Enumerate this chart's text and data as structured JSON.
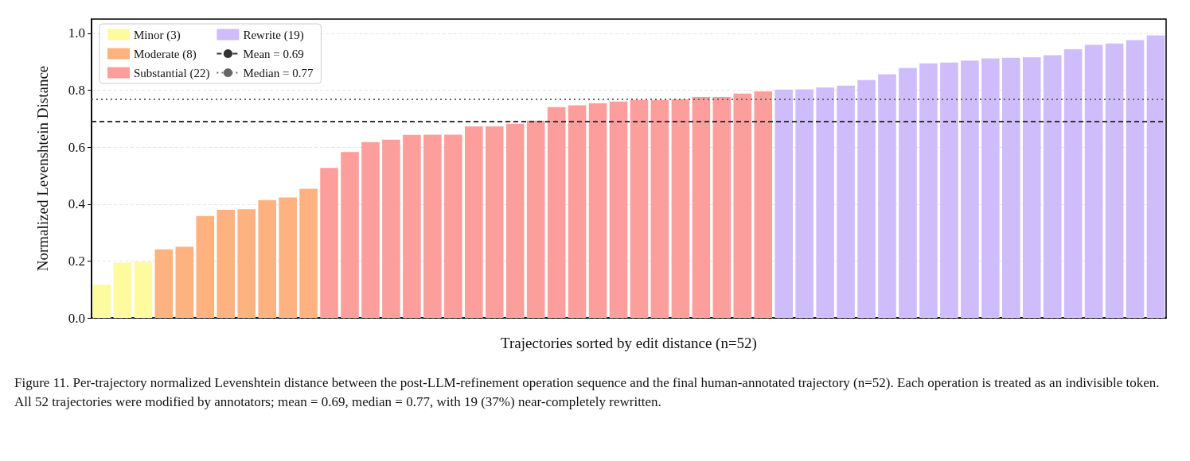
{
  "chart_data": {
    "type": "bar",
    "xlabel": "Trajectories sorted by edit distance (n=52)",
    "ylabel": "Normalized Levenshtein Distance",
    "categories": [
      null,
      null,
      null,
      null,
      null,
      null,
      null,
      null,
      null,
      null,
      null,
      null,
      null,
      null,
      null,
      null,
      null,
      null,
      null,
      null,
      null,
      null,
      null,
      null,
      null,
      null,
      null,
      null,
      null,
      null,
      null,
      null,
      null,
      null,
      null,
      null,
      null,
      null,
      null,
      null,
      null,
      null,
      null,
      null,
      null,
      null,
      null,
      null,
      null,
      null,
      null,
      null
    ],
    "series": [
      {
        "name": "Minor (3)",
        "color": "#fefb9f",
        "values": [
          0.117,
          0.194,
          0.197,
          null,
          null,
          null,
          null,
          null,
          null,
          null,
          null,
          null,
          null,
          null,
          null,
          null,
          null,
          null,
          null,
          null,
          null,
          null,
          null,
          null,
          null,
          null,
          null,
          null,
          null,
          null,
          null,
          null,
          null,
          null,
          null,
          null,
          null,
          null,
          null,
          null,
          null,
          null,
          null,
          null,
          null,
          null,
          null,
          null,
          null,
          null,
          null,
          null
        ]
      },
      {
        "name": "Moderate (8)",
        "color": "#fdb27f",
        "values": [
          null,
          null,
          null,
          0.241,
          0.25,
          0.358,
          0.38,
          0.382,
          0.414,
          0.423,
          0.454,
          null,
          null,
          null,
          null,
          null,
          null,
          null,
          null,
          null,
          null,
          null,
          null,
          null,
          null,
          null,
          null,
          null,
          null,
          null,
          null,
          null,
          null,
          null,
          null,
          null,
          null,
          null,
          null,
          null,
          null,
          null,
          null,
          null,
          null,
          null,
          null,
          null,
          null,
          null,
          null,
          null
        ]
      },
      {
        "name": "Substantial (22)",
        "color": "#fc9e9b",
        "values": [
          null,
          null,
          null,
          null,
          null,
          null,
          null,
          null,
          null,
          null,
          null,
          0.527,
          0.583,
          0.618,
          0.626,
          0.643,
          0.644,
          0.644,
          0.673,
          0.673,
          0.682,
          0.693,
          0.741,
          0.747,
          0.754,
          0.76,
          0.766,
          0.766,
          0.768,
          0.776,
          0.776,
          0.788,
          0.796,
          null,
          null,
          null,
          null,
          null,
          null,
          null,
          null,
          null,
          null,
          null,
          null,
          null,
          null,
          null,
          null,
          null,
          null,
          null
        ]
      },
      {
        "name": "Rewrite (19)",
        "color": "#cfbcfb",
        "values": [
          null,
          null,
          null,
          null,
          null,
          null,
          null,
          null,
          null,
          null,
          null,
          null,
          null,
          null,
          null,
          null,
          null,
          null,
          null,
          null,
          null,
          null,
          null,
          null,
          null,
          null,
          null,
          null,
          null,
          null,
          null,
          null,
          null,
          0.802,
          0.803,
          0.81,
          0.816,
          0.836,
          0.856,
          0.878,
          0.894,
          0.897,
          0.904,
          0.912,
          0.914,
          0.916,
          0.923,
          0.944,
          0.959,
          0.964,
          0.976,
          0.993
        ]
      }
    ],
    "ylim": [
      0,
      1.05
    ],
    "yticks": [
      {
        "value": 0,
        "label": "0.0"
      },
      {
        "value": 0.2,
        "label": "0.2"
      },
      {
        "value": 0.4,
        "label": "0.4"
      },
      {
        "value": 0.6,
        "label": "0.6"
      },
      {
        "value": 0.8,
        "label": "0.8"
      },
      {
        "value": 1,
        "label": "1.0"
      }
    ],
    "ref_lines": [
      {
        "axis": "y",
        "value": 0.69,
        "label": "Mean = 0.69",
        "color": "#333333",
        "line_style": "dashed"
      },
      {
        "axis": "y",
        "value": 0.77,
        "label": "Median = 0.77",
        "color": "#666666",
        "line_style": "dotted"
      }
    ],
    "grid": "y",
    "legend": "top left",
    "annotations": [
      "Figure 11. Per-trajectory normalized Levenshtein distance between the post-LLM-refinement operation sequence and the final human-annotated trajectory (n=52). Each operation is treated as an indivisible token. All 52 trajectories were modified by annotators; mean = 0.69, median = 0.77, with 19 (37%) near-completely rewritten."
    ]
  }
}
